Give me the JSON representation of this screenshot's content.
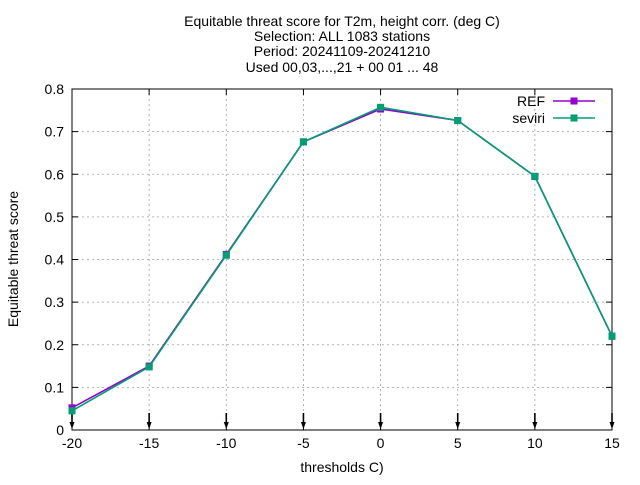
{
  "chart_data": {
    "type": "line",
    "title_lines": [
      "Equitable threat score  for T2m, height corr. (deg C)",
      "Selection: ALL   1083 stations",
      "Period: 20241109-20241210",
      "Used 00,03,...,21 + 00 01 ... 48"
    ],
    "xlabel": "thresholds C)",
    "ylabel": "Equitable threat score",
    "x": [
      -20,
      -15,
      -10,
      -5,
      0,
      5,
      10,
      15
    ],
    "xlim": [
      -20,
      15
    ],
    "ylim": [
      0,
      0.8
    ],
    "xticks": [
      "-20",
      "-15",
      "-10",
      "-5",
      "0",
      "5",
      "10",
      "15"
    ],
    "yticks": [
      "0",
      "0.1",
      "0.2",
      "0.3",
      "0.4",
      "0.5",
      "0.6",
      "0.7",
      "0.8"
    ],
    "grid": true,
    "legend_position": "top-right",
    "series": [
      {
        "name": "REF",
        "color": "#9400d3",
        "values": [
          0.052,
          0.15,
          0.412,
          0.676,
          0.753,
          0.726,
          0.595,
          0.22
        ]
      },
      {
        "name": "seviri",
        "color": "#009e73",
        "values": [
          0.045,
          0.148,
          0.41,
          0.676,
          0.757,
          0.726,
          0.595,
          0.22
        ]
      }
    ]
  }
}
